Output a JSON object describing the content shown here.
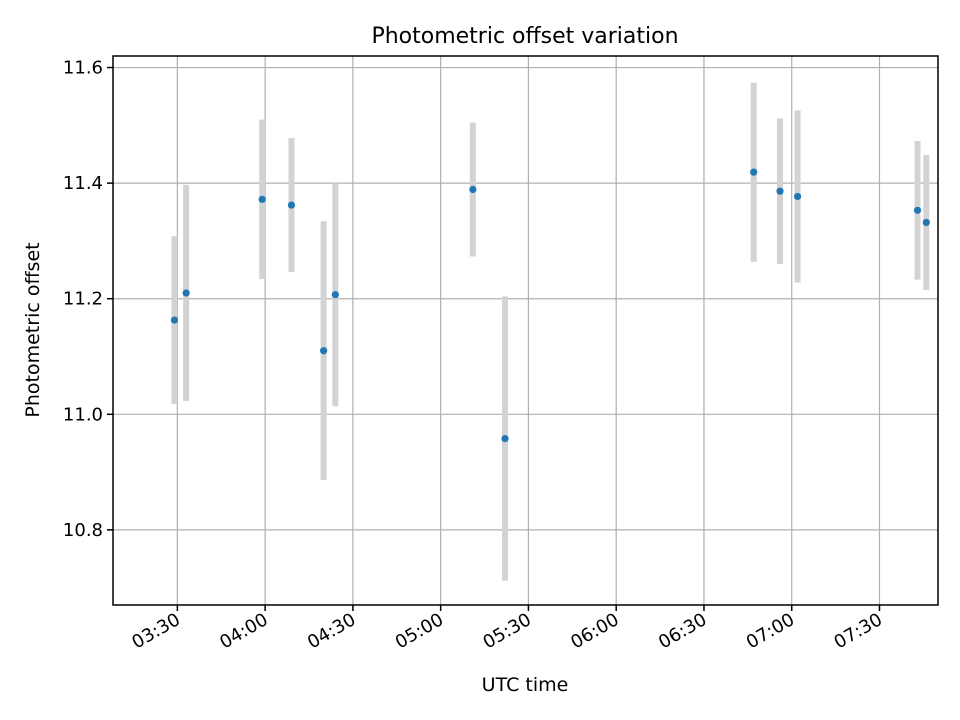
{
  "chart_data": {
    "type": "scatter",
    "title": "Photometric offset variation",
    "xlabel": "UTC time",
    "ylabel": "Photometric offset",
    "xlim": [
      "03:08",
      "07:50"
    ],
    "ylim": [
      10.67,
      11.62
    ],
    "grid": true,
    "x_ticks": [
      "03:30",
      "04:00",
      "04:30",
      "05:00",
      "05:30",
      "06:00",
      "06:30",
      "07:00",
      "07:30"
    ],
    "y_ticks": [
      10.8,
      11.0,
      11.2,
      11.4,
      11.6
    ],
    "y_tick_labels": [
      "10.8",
      "11.0",
      "11.2",
      "11.4",
      "11.6"
    ],
    "point_color": "#1f77b4",
    "errorbar_color": "#d3d3d3",
    "points": [
      {
        "x": "03:29",
        "y": 11.163,
        "err": 0.145
      },
      {
        "x": "03:33",
        "y": 11.21,
        "err": 0.187
      },
      {
        "x": "03:59",
        "y": 11.372,
        "err": 0.138
      },
      {
        "x": "04:09",
        "y": 11.362,
        "err": 0.116
      },
      {
        "x": "04:20",
        "y": 11.11,
        "err": 0.224
      },
      {
        "x": "04:24",
        "y": 11.207,
        "err": 0.193
      },
      {
        "x": "05:11",
        "y": 11.389,
        "err": 0.116
      },
      {
        "x": "05:22",
        "y": 10.958,
        "err": 0.246
      },
      {
        "x": "06:47",
        "y": 11.419,
        "err": 0.155
      },
      {
        "x": "06:56",
        "y": 11.386,
        "err": 0.126
      },
      {
        "x": "07:02",
        "y": 11.377,
        "err": 0.149
      },
      {
        "x": "07:43",
        "y": 11.353,
        "err": 0.12
      },
      {
        "x": "07:46",
        "y": 11.332,
        "err": 0.117
      }
    ]
  }
}
